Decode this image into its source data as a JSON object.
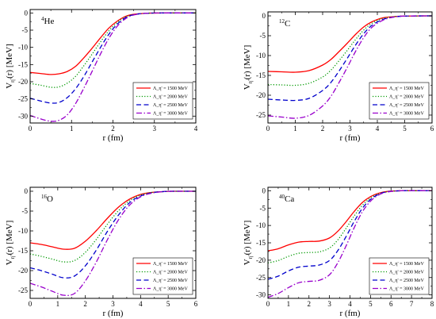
{
  "chart_data": [
    {
      "type": "line",
      "nucleus": {
        "mass": "4",
        "symbol": "He"
      },
      "xlabel": "r (fm)",
      "ylabel": {
        "main": "V",
        "sub": "η'",
        "rest": "(r)  [MeV]"
      },
      "xlim": [
        0,
        4
      ],
      "ylim": [
        -32,
        1
      ],
      "xticks": [
        0,
        1,
        2,
        3,
        4
      ],
      "yticks": [
        0,
        -5,
        -10,
        -15,
        -20,
        -25,
        -30
      ],
      "legend_position": "bottom-right",
      "series": [
        {
          "name": "Λ_η' = 1500 MeV",
          "color": "#ff0000",
          "dash": "solid",
          "x": [
            0,
            0.25,
            0.5,
            0.7,
            0.9,
            1.1,
            1.3,
            1.5,
            1.7,
            1.9,
            2.1,
            2.3,
            2.5,
            2.8,
            3.2,
            4.0
          ],
          "y": [
            -17.3,
            -17.6,
            -17.9,
            -17.7,
            -17.0,
            -15.5,
            -13.0,
            -10.2,
            -7.2,
            -4.4,
            -2.4,
            -1.0,
            -0.4,
            -0.1,
            0,
            0
          ]
        },
        {
          "name": "Λ_η' = 2000 MeV",
          "color": "#009900",
          "dash": "dot",
          "x": [
            0,
            0.25,
            0.5,
            0.7,
            0.9,
            1.1,
            1.3,
            1.5,
            1.7,
            1.9,
            2.1,
            2.3,
            2.5,
            2.8,
            3.2,
            4.0
          ],
          "y": [
            -20.5,
            -21.0,
            -21.6,
            -21.5,
            -20.4,
            -18.4,
            -15.3,
            -11.9,
            -8.4,
            -5.2,
            -2.8,
            -1.2,
            -0.5,
            -0.1,
            0,
            0
          ]
        },
        {
          "name": "Λ_η' = 2500 MeV",
          "color": "#0000cc",
          "dash": "dash",
          "x": [
            0,
            0.25,
            0.5,
            0.7,
            0.9,
            1.1,
            1.3,
            1.5,
            1.7,
            1.9,
            2.1,
            2.3,
            2.5,
            2.8,
            3.2,
            4.0
          ],
          "y": [
            -24.8,
            -25.6,
            -26.2,
            -26.0,
            -24.6,
            -22.0,
            -18.4,
            -14.2,
            -10.0,
            -6.2,
            -3.3,
            -1.4,
            -0.5,
            -0.1,
            0,
            0
          ]
        },
        {
          "name": "Λ_η' = 3000 MeV",
          "color": "#9900cc",
          "dash": "dashdot",
          "x": [
            0,
            0.25,
            0.5,
            0.7,
            0.9,
            1.1,
            1.3,
            1.5,
            1.7,
            1.9,
            2.1,
            2.3,
            2.5,
            2.8,
            3.2,
            4.0
          ],
          "y": [
            -29.8,
            -30.8,
            -31.5,
            -31.2,
            -29.6,
            -26.3,
            -21.8,
            -16.9,
            -11.9,
            -7.4,
            -3.9,
            -1.7,
            -0.6,
            -0.1,
            0,
            0
          ]
        }
      ]
    },
    {
      "type": "line",
      "nucleus": {
        "mass": "12",
        "symbol": "C"
      },
      "xlabel": "r (fm)",
      "ylabel": {
        "main": "V",
        "sub": "η'",
        "rest": "(r)  [MeV]"
      },
      "xlim": [
        0,
        6
      ],
      "ylim": [
        -27,
        1
      ],
      "xticks": [
        0,
        1,
        2,
        3,
        4,
        5,
        6
      ],
      "yticks": [
        0,
        -5,
        -10,
        -15,
        -20,
        -25
      ],
      "legend_position": "bottom-right",
      "series": [
        {
          "name": "Λ_η' = 1500 MeV",
          "color": "#ff0000",
          "dash": "solid",
          "x": [
            0,
            0.5,
            1.0,
            1.5,
            2.0,
            2.3,
            2.6,
            2.9,
            3.2,
            3.5,
            3.8,
            4.2,
            4.6,
            5.0,
            6.0
          ],
          "y": [
            -14.0,
            -14.1,
            -14.2,
            -13.8,
            -12.4,
            -11.0,
            -9.0,
            -6.9,
            -4.7,
            -2.8,
            -1.5,
            -0.5,
            -0.2,
            -0.05,
            0
          ]
        },
        {
          "name": "Λ_η' = 2000 MeV",
          "color": "#009900",
          "dash": "dot",
          "x": [
            0,
            0.5,
            1.0,
            1.5,
            2.0,
            2.3,
            2.6,
            2.9,
            3.2,
            3.5,
            3.8,
            4.2,
            4.6,
            5.0,
            6.0
          ],
          "y": [
            -17.3,
            -17.4,
            -17.5,
            -17.0,
            -15.4,
            -13.7,
            -11.3,
            -8.7,
            -6.0,
            -3.6,
            -1.9,
            -0.7,
            -0.2,
            -0.05,
            0
          ]
        },
        {
          "name": "Λ_η' = 2500 MeV",
          "color": "#0000cc",
          "dash": "dash",
          "x": [
            0,
            0.5,
            1.0,
            1.5,
            2.0,
            2.3,
            2.6,
            2.9,
            3.2,
            3.5,
            3.8,
            4.2,
            4.6,
            5.0,
            6.0
          ],
          "y": [
            -21.0,
            -21.2,
            -21.3,
            -20.8,
            -18.8,
            -16.8,
            -13.9,
            -10.7,
            -7.4,
            -4.5,
            -2.4,
            -0.9,
            -0.3,
            -0.05,
            0
          ]
        },
        {
          "name": "Λ_η' = 3000 MeV",
          "color": "#9900cc",
          "dash": "dashdot",
          "x": [
            0,
            0.5,
            1.0,
            1.5,
            2.0,
            2.3,
            2.6,
            2.9,
            3.2,
            3.5,
            3.8,
            4.2,
            4.6,
            5.0,
            6.0
          ],
          "y": [
            -25.2,
            -25.5,
            -25.8,
            -25.1,
            -22.7,
            -20.3,
            -16.8,
            -13.0,
            -9.0,
            -5.5,
            -2.9,
            -1.1,
            -0.3,
            -0.05,
            0
          ]
        }
      ]
    },
    {
      "type": "line",
      "nucleus": {
        "mass": "16",
        "symbol": "O"
      },
      "xlabel": "r (fm)",
      "ylabel": {
        "main": "V",
        "sub": "η'",
        "rest": "(r)  [MeV]"
      },
      "xlim": [
        0,
        6
      ],
      "ylim": [
        -27,
        1
      ],
      "xticks": [
        0,
        1,
        2,
        3,
        4,
        5,
        6
      ],
      "yticks": [
        0,
        -5,
        -10,
        -15,
        -20,
        -25
      ],
      "legend_position": "bottom-right",
      "series": [
        {
          "name": "Λ_η' = 1500 MeV",
          "color": "#ff0000",
          "dash": "solid",
          "x": [
            0,
            0.4,
            0.8,
            1.2,
            1.6,
            2.0,
            2.4,
            2.8,
            3.2,
            3.6,
            4.0,
            4.4,
            4.8,
            5.2,
            6.0
          ],
          "y": [
            -13.0,
            -13.4,
            -14.0,
            -14.6,
            -14.4,
            -12.6,
            -9.9,
            -6.8,
            -4.0,
            -2.0,
            -0.8,
            -0.3,
            -0.1,
            0,
            0
          ]
        },
        {
          "name": "Λ_η' = 2000 MeV",
          "color": "#009900",
          "dash": "dot",
          "x": [
            0,
            0.4,
            0.8,
            1.2,
            1.6,
            2.0,
            2.4,
            2.8,
            3.2,
            3.6,
            4.0,
            4.4,
            4.8,
            5.2,
            6.0
          ],
          "y": [
            -15.8,
            -16.4,
            -17.1,
            -17.8,
            -17.5,
            -15.4,
            -12.1,
            -8.3,
            -4.9,
            -2.4,
            -1.0,
            -0.3,
            -0.1,
            0,
            0
          ]
        },
        {
          "name": "Λ_η' = 2500 MeV",
          "color": "#0000cc",
          "dash": "dash",
          "x": [
            0,
            0.4,
            0.8,
            1.2,
            1.6,
            2.0,
            2.4,
            2.8,
            3.2,
            3.6,
            4.0,
            4.4,
            4.8,
            5.2,
            6.0
          ],
          "y": [
            -19.3,
            -20.0,
            -20.9,
            -21.8,
            -21.4,
            -18.8,
            -14.8,
            -10.1,
            -6.0,
            -2.9,
            -1.2,
            -0.4,
            -0.1,
            0,
            0
          ]
        },
        {
          "name": "Λ_η' = 3000 MeV",
          "color": "#9900cc",
          "dash": "dashdot",
          "x": [
            0,
            0.4,
            0.8,
            1.2,
            1.6,
            2.0,
            2.4,
            2.8,
            3.2,
            3.6,
            4.0,
            4.4,
            4.8,
            5.2,
            6.0
          ],
          "y": [
            -23.2,
            -24.1,
            -25.2,
            -26.2,
            -25.8,
            -22.6,
            -17.8,
            -12.2,
            -7.2,
            -3.5,
            -1.4,
            -0.5,
            -0.1,
            0,
            0
          ]
        }
      ]
    },
    {
      "type": "line",
      "nucleus": {
        "mass": "40",
        "symbol": "Ca"
      },
      "xlabel": "r (fm)",
      "ylabel": {
        "main": "V",
        "sub": "η'",
        "rest": "(r)  [MeV]"
      },
      "xlim": [
        0,
        8
      ],
      "ylim": [
        -31,
        1
      ],
      "xticks": [
        0,
        1,
        2,
        3,
        4,
        5,
        6,
        7,
        8
      ],
      "yticks": [
        0,
        -5,
        -10,
        -15,
        -20,
        -25,
        -30
      ],
      "legend_position": "bottom-right",
      "series": [
        {
          "name": "Λ_η' = 1500 MeV",
          "color": "#ff0000",
          "dash": "solid",
          "x": [
            0,
            0.5,
            1.0,
            1.5,
            2.0,
            2.5,
            3.0,
            3.4,
            3.8,
            4.2,
            4.6,
            5.0,
            5.4,
            5.8,
            6.5,
            8.0
          ],
          "y": [
            -17.3,
            -16.7,
            -15.6,
            -14.8,
            -14.6,
            -14.5,
            -13.6,
            -11.7,
            -9.0,
            -6.0,
            -3.4,
            -1.7,
            -0.7,
            -0.2,
            0,
            0
          ]
        },
        {
          "name": "Λ_η' = 2000 MeV",
          "color": "#009900",
          "dash": "dot",
          "x": [
            0,
            0.5,
            1.0,
            1.5,
            2.0,
            2.5,
            3.0,
            3.4,
            3.8,
            4.2,
            4.6,
            5.0,
            5.4,
            5.8,
            6.5,
            8.0
          ],
          "y": [
            -20.8,
            -20.1,
            -18.9,
            -18.0,
            -17.8,
            -17.6,
            -16.5,
            -14.2,
            -10.9,
            -7.3,
            -4.2,
            -2.1,
            -0.9,
            -0.3,
            0,
            0
          ]
        },
        {
          "name": "Λ_η' = 2500 MeV",
          "color": "#0000cc",
          "dash": "dash",
          "x": [
            0,
            0.5,
            1.0,
            1.5,
            2.0,
            2.5,
            3.0,
            3.4,
            3.8,
            4.2,
            4.6,
            5.0,
            5.4,
            5.8,
            6.5,
            8.0
          ],
          "y": [
            -25.5,
            -24.6,
            -23.1,
            -22.0,
            -21.7,
            -21.4,
            -20.1,
            -17.3,
            -13.3,
            -8.9,
            -5.1,
            -2.5,
            -1.0,
            -0.3,
            0,
            0
          ]
        },
        {
          "name": "Λ_η' = 3000 MeV",
          "color": "#9900cc",
          "dash": "dashdot",
          "x": [
            0,
            0.5,
            1.0,
            1.5,
            2.0,
            2.5,
            3.0,
            3.4,
            3.8,
            4.2,
            4.6,
            5.0,
            5.4,
            5.8,
            6.5,
            8.0
          ],
          "y": [
            -30.7,
            -29.6,
            -27.9,
            -26.5,
            -26.1,
            -25.8,
            -24.2,
            -20.8,
            -16.0,
            -10.7,
            -6.1,
            -3.0,
            -1.2,
            -0.4,
            0,
            0
          ]
        }
      ]
    }
  ]
}
